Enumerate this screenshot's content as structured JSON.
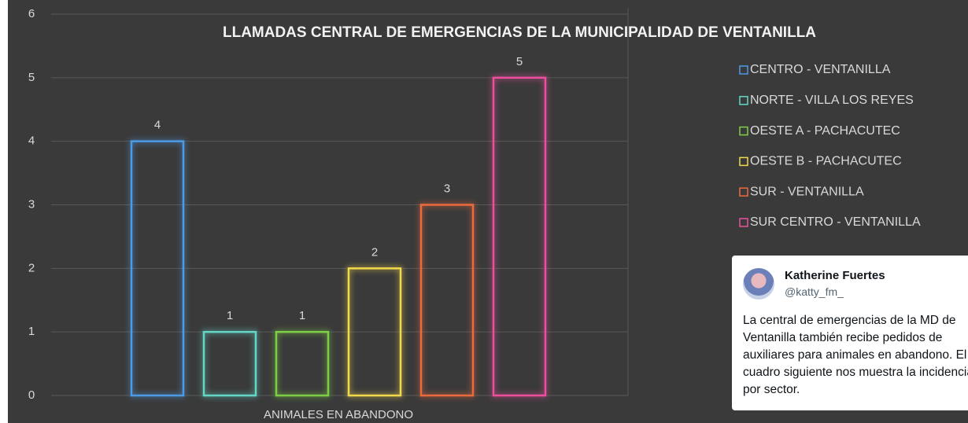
{
  "chart_data": {
    "type": "bar",
    "title": "LLAMADAS CENTRAL DE EMERGENCIAS DE LA MUNICIPALIDAD DE VENTANILLA",
    "categories": [
      "ANIMALES EN ABANDONO"
    ],
    "series": [
      {
        "name": "CENTRO - VENTANILLA",
        "color": "#4d9be6",
        "values": [
          4
        ]
      },
      {
        "name": "NORTE - VILLA LOS REYES",
        "color": "#63d6c6",
        "values": [
          1
        ]
      },
      {
        "name": "OESTE A - PACHACUTEC",
        "color": "#7fcf45",
        "values": [
          1
        ]
      },
      {
        "name": "OESTE B - PACHACUTEC",
        "color": "#f2d94c",
        "values": [
          2
        ]
      },
      {
        "name": "SUR - VENTANILLA",
        "color": "#ec6a3e",
        "values": [
          3
        ]
      },
      {
        "name": "SUR CENTRO - VENTANILLA",
        "color": "#ec4f9e",
        "values": [
          5
        ]
      }
    ],
    "ylim": [
      0,
      6
    ],
    "yticks": [
      0,
      1,
      2,
      3,
      4,
      5,
      6
    ],
    "grid": true,
    "legend": "right"
  },
  "tweet": {
    "name": "Katherine Fuertes",
    "handle": "@katty_fm_",
    "text": "La central de emergencias de la MD de Ventanilla también recibe pedidos de auxiliares para animales en abandono. El cuadro siguiente nos muestra la incidencia por sector."
  }
}
